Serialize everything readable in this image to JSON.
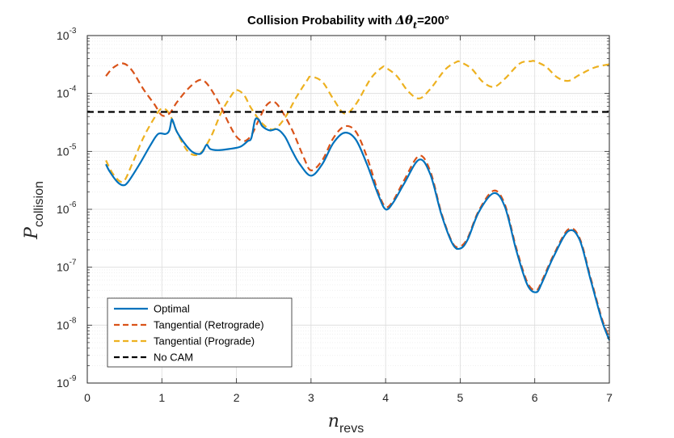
{
  "chart_data": {
    "type": "line",
    "title": {
      "prefix": "Collision Probability with ",
      "symbol": "Δθ",
      "subscript": "t",
      "suffix": "=200°"
    },
    "xlabel": {
      "main": "n",
      "subscript": "revs"
    },
    "ylabel": {
      "main": "P",
      "subscript": "collision"
    },
    "xlim": [
      0,
      7
    ],
    "ylim": [
      1e-09,
      0.001
    ],
    "yscale": "log",
    "xticks": [
      "0",
      "1",
      "2",
      "3",
      "4",
      "5",
      "6",
      "7"
    ],
    "yticks": [
      {
        "base": "10",
        "exp": "-9"
      },
      {
        "base": "10",
        "exp": "-8"
      },
      {
        "base": "10",
        "exp": "-7"
      },
      {
        "base": "10",
        "exp": "-6"
      },
      {
        "base": "10",
        "exp": "-5"
      },
      {
        "base": "10",
        "exp": "-4"
      },
      {
        "base": "10",
        "exp": "-3"
      }
    ],
    "grid": true,
    "legend_position": "bottom-left",
    "series": [
      {
        "name": "Optimal",
        "color": "#0072BD",
        "style": "solid",
        "x": [
          0.25,
          0.3,
          0.4,
          0.48,
          0.55,
          0.7,
          0.85,
          0.95,
          1.05,
          1.1,
          1.13,
          1.15,
          1.2,
          1.3,
          1.4,
          1.5,
          1.55,
          1.6,
          1.65,
          1.75,
          1.9,
          2.05,
          2.15,
          2.2,
          2.25,
          2.3,
          2.35,
          2.45,
          2.55,
          2.65,
          2.75,
          2.85,
          3.0,
          3.15,
          3.3,
          3.45,
          3.6,
          3.75,
          3.9,
          4.0,
          4.1,
          4.25,
          4.45,
          4.6,
          4.75,
          4.9,
          5.0,
          5.1,
          5.25,
          5.45,
          5.6,
          5.75,
          5.9,
          6.02,
          6.1,
          6.25,
          6.45,
          6.6,
          6.75,
          6.9,
          7.0
        ],
        "y": [
          6e-06,
          4.5e-06,
          3e-06,
          2.6e-06,
          3e-06,
          6e-06,
          1.3e-05,
          2e-05,
          2e-05,
          2.3e-05,
          3.5e-05,
          3.3e-05,
          2.2e-05,
          1.4e-05,
          1e-05,
          9e-06,
          1e-05,
          1.3e-05,
          1.1e-05,
          1.05e-05,
          1.1e-05,
          1.2e-05,
          1.5e-05,
          1.7e-05,
          3.5e-05,
          3.5e-05,
          2.7e-05,
          2.3e-05,
          2.4e-05,
          1.8e-05,
          1e-05,
          6e-06,
          3.8e-06,
          6e-06,
          1.4e-05,
          2.1e-05,
          1.6e-05,
          6e-06,
          1.8e-06,
          1e-06,
          1.3e-06,
          2.8e-06,
          7.2e-06,
          4e-06,
          8e-07,
          2.5e-07,
          2.1e-07,
          3e-07,
          9e-07,
          1.9e-06,
          1.1e-06,
          2e-07,
          5e-08,
          3.7e-08,
          5.5e-08,
          1.5e-07,
          4.2e-07,
          3e-07,
          6e-08,
          1.2e-08,
          5.5e-09
        ]
      },
      {
        "name": "Tangential (Retrograde)",
        "color": "#D95319",
        "style": "dashed",
        "x": [
          0.25,
          0.35,
          0.48,
          0.6,
          0.75,
          0.9,
          1.0,
          1.1,
          1.2,
          1.35,
          1.5,
          1.6,
          1.75,
          1.9,
          2.0,
          2.1,
          2.2,
          2.3,
          2.4,
          2.5,
          2.6,
          2.75,
          2.9,
          3.0,
          3.15,
          3.3,
          3.45,
          3.6,
          3.75,
          3.9,
          4.0,
          4.1,
          4.25,
          4.45,
          4.6,
          4.75,
          4.9,
          5.0,
          5.1,
          5.25,
          5.45,
          5.6,
          5.75,
          5.9,
          6.02,
          6.1,
          6.25,
          6.45,
          6.6,
          6.75,
          6.9,
          7.0
        ],
        "y": [
          0.0002,
          0.00028,
          0.00033,
          0.00025,
          0.00012,
          6.5e-05,
          4.2e-05,
          4.5e-05,
          7e-05,
          0.00012,
          0.00017,
          0.00015,
          7.5e-05,
          3e-05,
          1.8e-05,
          1.5e-05,
          1.9e-05,
          3.5e-05,
          6.2e-05,
          7.2e-05,
          5.2e-05,
          2.3e-05,
          8e-06,
          4.7e-06,
          7e-06,
          1.7e-05,
          2.7e-05,
          2.2e-05,
          8e-06,
          2e-06,
          1.1e-06,
          1.4e-06,
          3.2e-06,
          8.4e-06,
          4.5e-06,
          8.5e-07,
          2.6e-07,
          2.3e-07,
          3.2e-07,
          9.5e-07,
          2.1e-06,
          1.2e-06,
          2.2e-07,
          5.5e-08,
          4e-08,
          6e-08,
          1.6e-07,
          4.5e-07,
          3.2e-07,
          6.5e-08,
          1.3e-08,
          6e-09
        ]
      },
      {
        "name": "Tangential (Prograde)",
        "color": "#EDB120",
        "style": "dashed",
        "x": [
          0.25,
          0.35,
          0.48,
          0.6,
          0.75,
          0.9,
          1.0,
          1.1,
          1.2,
          1.35,
          1.5,
          1.65,
          1.8,
          1.95,
          2.0,
          2.1,
          2.2,
          2.35,
          2.5,
          2.65,
          2.8,
          2.95,
          3.0,
          3.15,
          3.3,
          3.45,
          3.6,
          3.8,
          3.95,
          4.0,
          4.15,
          4.3,
          4.45,
          4.6,
          4.8,
          4.95,
          5.0,
          5.15,
          5.3,
          5.45,
          5.6,
          5.8,
          5.95,
          6.0,
          6.15,
          6.3,
          6.45,
          6.6,
          6.8,
          7.0
        ],
        "y": [
          7e-06,
          4e-06,
          3e-06,
          6e-06,
          1.7e-05,
          3.8e-05,
          5.5e-05,
          4.5e-05,
          2.2e-05,
          1e-05,
          9e-06,
          1.7e-05,
          4.8e-05,
          0.0001,
          0.000115,
          9.5e-05,
          5.5e-05,
          3e-05,
          2.4e-05,
          3.8e-05,
          8.5e-05,
          0.00017,
          0.000195,
          0.00016,
          8e-05,
          4.5e-05,
          6.5e-05,
          0.00018,
          0.00028,
          0.00028,
          0.0002,
          0.00011,
          8.2e-05,
          0.00012,
          0.00026,
          0.00035,
          0.00035,
          0.00027,
          0.00016,
          0.00013,
          0.00018,
          0.00033,
          0.00036,
          0.00036,
          0.00029,
          0.00019,
          0.000165,
          0.00021,
          0.00028,
          0.00032
        ]
      },
      {
        "name": "No CAM",
        "color": "#000000",
        "style": "dashed",
        "x": [
          0,
          7
        ],
        "y": [
          4.8e-05,
          4.8e-05
        ]
      }
    ]
  }
}
